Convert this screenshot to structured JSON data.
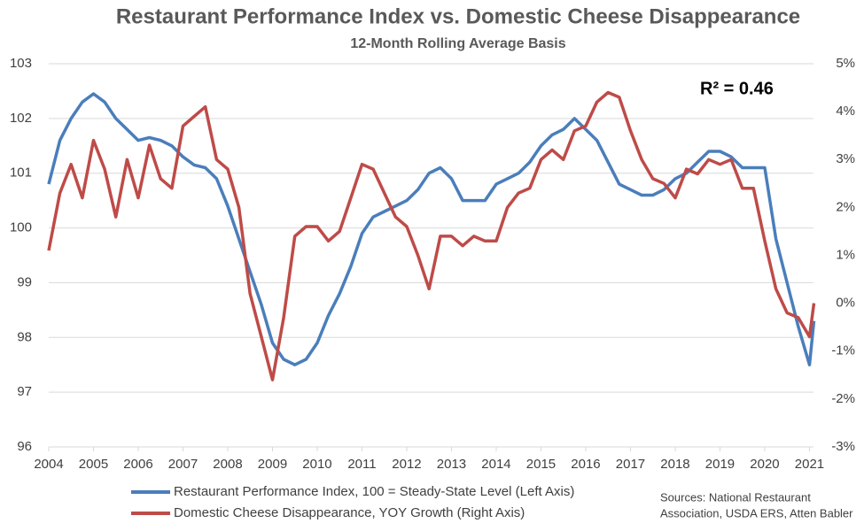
{
  "chart_data": {
    "type": "line",
    "title": "Restaurant Performance Index vs. Domestic Cheese Disappearance",
    "subtitle": "12-Month Rolling Average Basis",
    "annotation": "R² = 0.46",
    "source": [
      "Sources: National Restaurant",
      "Association, USDA ERS, Atten Babler"
    ],
    "x": [
      2004,
      2004.25,
      2004.5,
      2004.75,
      2005,
      2005.25,
      2005.5,
      2005.75,
      2006,
      2006.25,
      2006.5,
      2006.75,
      2007,
      2007.25,
      2007.5,
      2007.75,
      2008,
      2008.25,
      2008.5,
      2008.75,
      2009,
      2009.25,
      2009.5,
      2009.75,
      2010,
      2010.25,
      2010.5,
      2010.75,
      2011,
      2011.25,
      2011.5,
      2011.75,
      2012,
      2012.25,
      2012.5,
      2012.75,
      2013,
      2013.25,
      2013.5,
      2013.75,
      2014,
      2014.25,
      2014.5,
      2014.75,
      2015,
      2015.25,
      2015.5,
      2015.75,
      2016,
      2016.25,
      2016.5,
      2016.75,
      2017,
      2017.25,
      2017.5,
      2017.75,
      2018,
      2018.25,
      2018.5,
      2018.75,
      2019,
      2019.25,
      2019.5,
      2019.75,
      2020,
      2020.25,
      2020.5,
      2020.75,
      2021,
      2021.1
    ],
    "series": [
      {
        "name": "Restaurant Performance Index, 100 = Steady-State Level (Left Axis)",
        "color": "#4a7ebb",
        "axis": "y",
        "values": [
          100.8,
          101.6,
          102.0,
          102.3,
          102.45,
          102.3,
          102.0,
          101.8,
          101.6,
          101.65,
          101.6,
          101.5,
          101.3,
          101.15,
          101.1,
          100.9,
          100.4,
          99.8,
          99.2,
          98.6,
          97.9,
          97.6,
          97.5,
          97.6,
          97.9,
          98.4,
          98.8,
          99.3,
          99.9,
          100.2,
          100.3,
          100.4,
          100.5,
          100.7,
          101.0,
          101.1,
          100.9,
          100.5,
          100.5,
          100.5,
          100.8,
          100.9,
          101.0,
          101.2,
          101.5,
          101.7,
          101.8,
          102.0,
          101.8,
          101.6,
          101.2,
          100.8,
          100.7,
          100.6,
          100.6,
          100.7,
          100.9,
          101.0,
          101.2,
          101.4,
          101.4,
          101.3,
          101.1,
          101.1,
          101.1,
          99.8,
          99.0,
          98.2,
          97.5,
          98.3
        ]
      },
      {
        "name": "Domestic Cheese Disappearance, YOY Growth (Right Axis)",
        "color": "#be4b48",
        "axis": "y2",
        "values": [
          1.1,
          2.3,
          2.9,
          2.2,
          3.4,
          2.8,
          1.8,
          3.0,
          2.2,
          3.3,
          2.6,
          2.4,
          3.7,
          3.9,
          4.1,
          3.0,
          2.8,
          2.0,
          0.2,
          -0.7,
          -1.6,
          -0.3,
          1.4,
          1.6,
          1.6,
          1.3,
          1.5,
          2.2,
          2.9,
          2.8,
          2.3,
          1.8,
          1.6,
          1.0,
          0.3,
          1.4,
          1.4,
          1.2,
          1.4,
          1.3,
          1.3,
          2.0,
          2.3,
          2.4,
          3.0,
          3.2,
          3.0,
          3.6,
          3.7,
          4.2,
          4.4,
          4.3,
          3.6,
          3.0,
          2.6,
          2.5,
          2.2,
          2.8,
          2.7,
          3.0,
          2.9,
          3.0,
          2.4,
          2.4,
          1.3,
          0.3,
          -0.2,
          -0.3,
          -0.7,
          0.0
        ]
      }
    ],
    "xlim": [
      2004,
      2021.09
    ],
    "xticks": [
      2004,
      2005,
      2006,
      2007,
      2008,
      2009,
      2010,
      2011,
      2012,
      2013,
      2014,
      2015,
      2016,
      2017,
      2018,
      2019,
      2020,
      2021
    ],
    "ylim": [
      96,
      103
    ],
    "yticks": [
      96,
      97,
      98,
      99,
      100,
      101,
      102,
      103
    ],
    "y2lim": [
      -3,
      5
    ],
    "y2ticks": [
      {
        "value": -3,
        "label": "-3%"
      },
      {
        "value": -2,
        "label": "-2%"
      },
      {
        "value": -1,
        "label": "-1%"
      },
      {
        "value": 0,
        "label": "0%"
      },
      {
        "value": 1,
        "label": "1%"
      },
      {
        "value": 2,
        "label": "2%"
      },
      {
        "value": 3,
        "label": "3%"
      },
      {
        "value": 4,
        "label": "4%"
      },
      {
        "value": 5,
        "label": "5%"
      }
    ],
    "grid": true
  }
}
